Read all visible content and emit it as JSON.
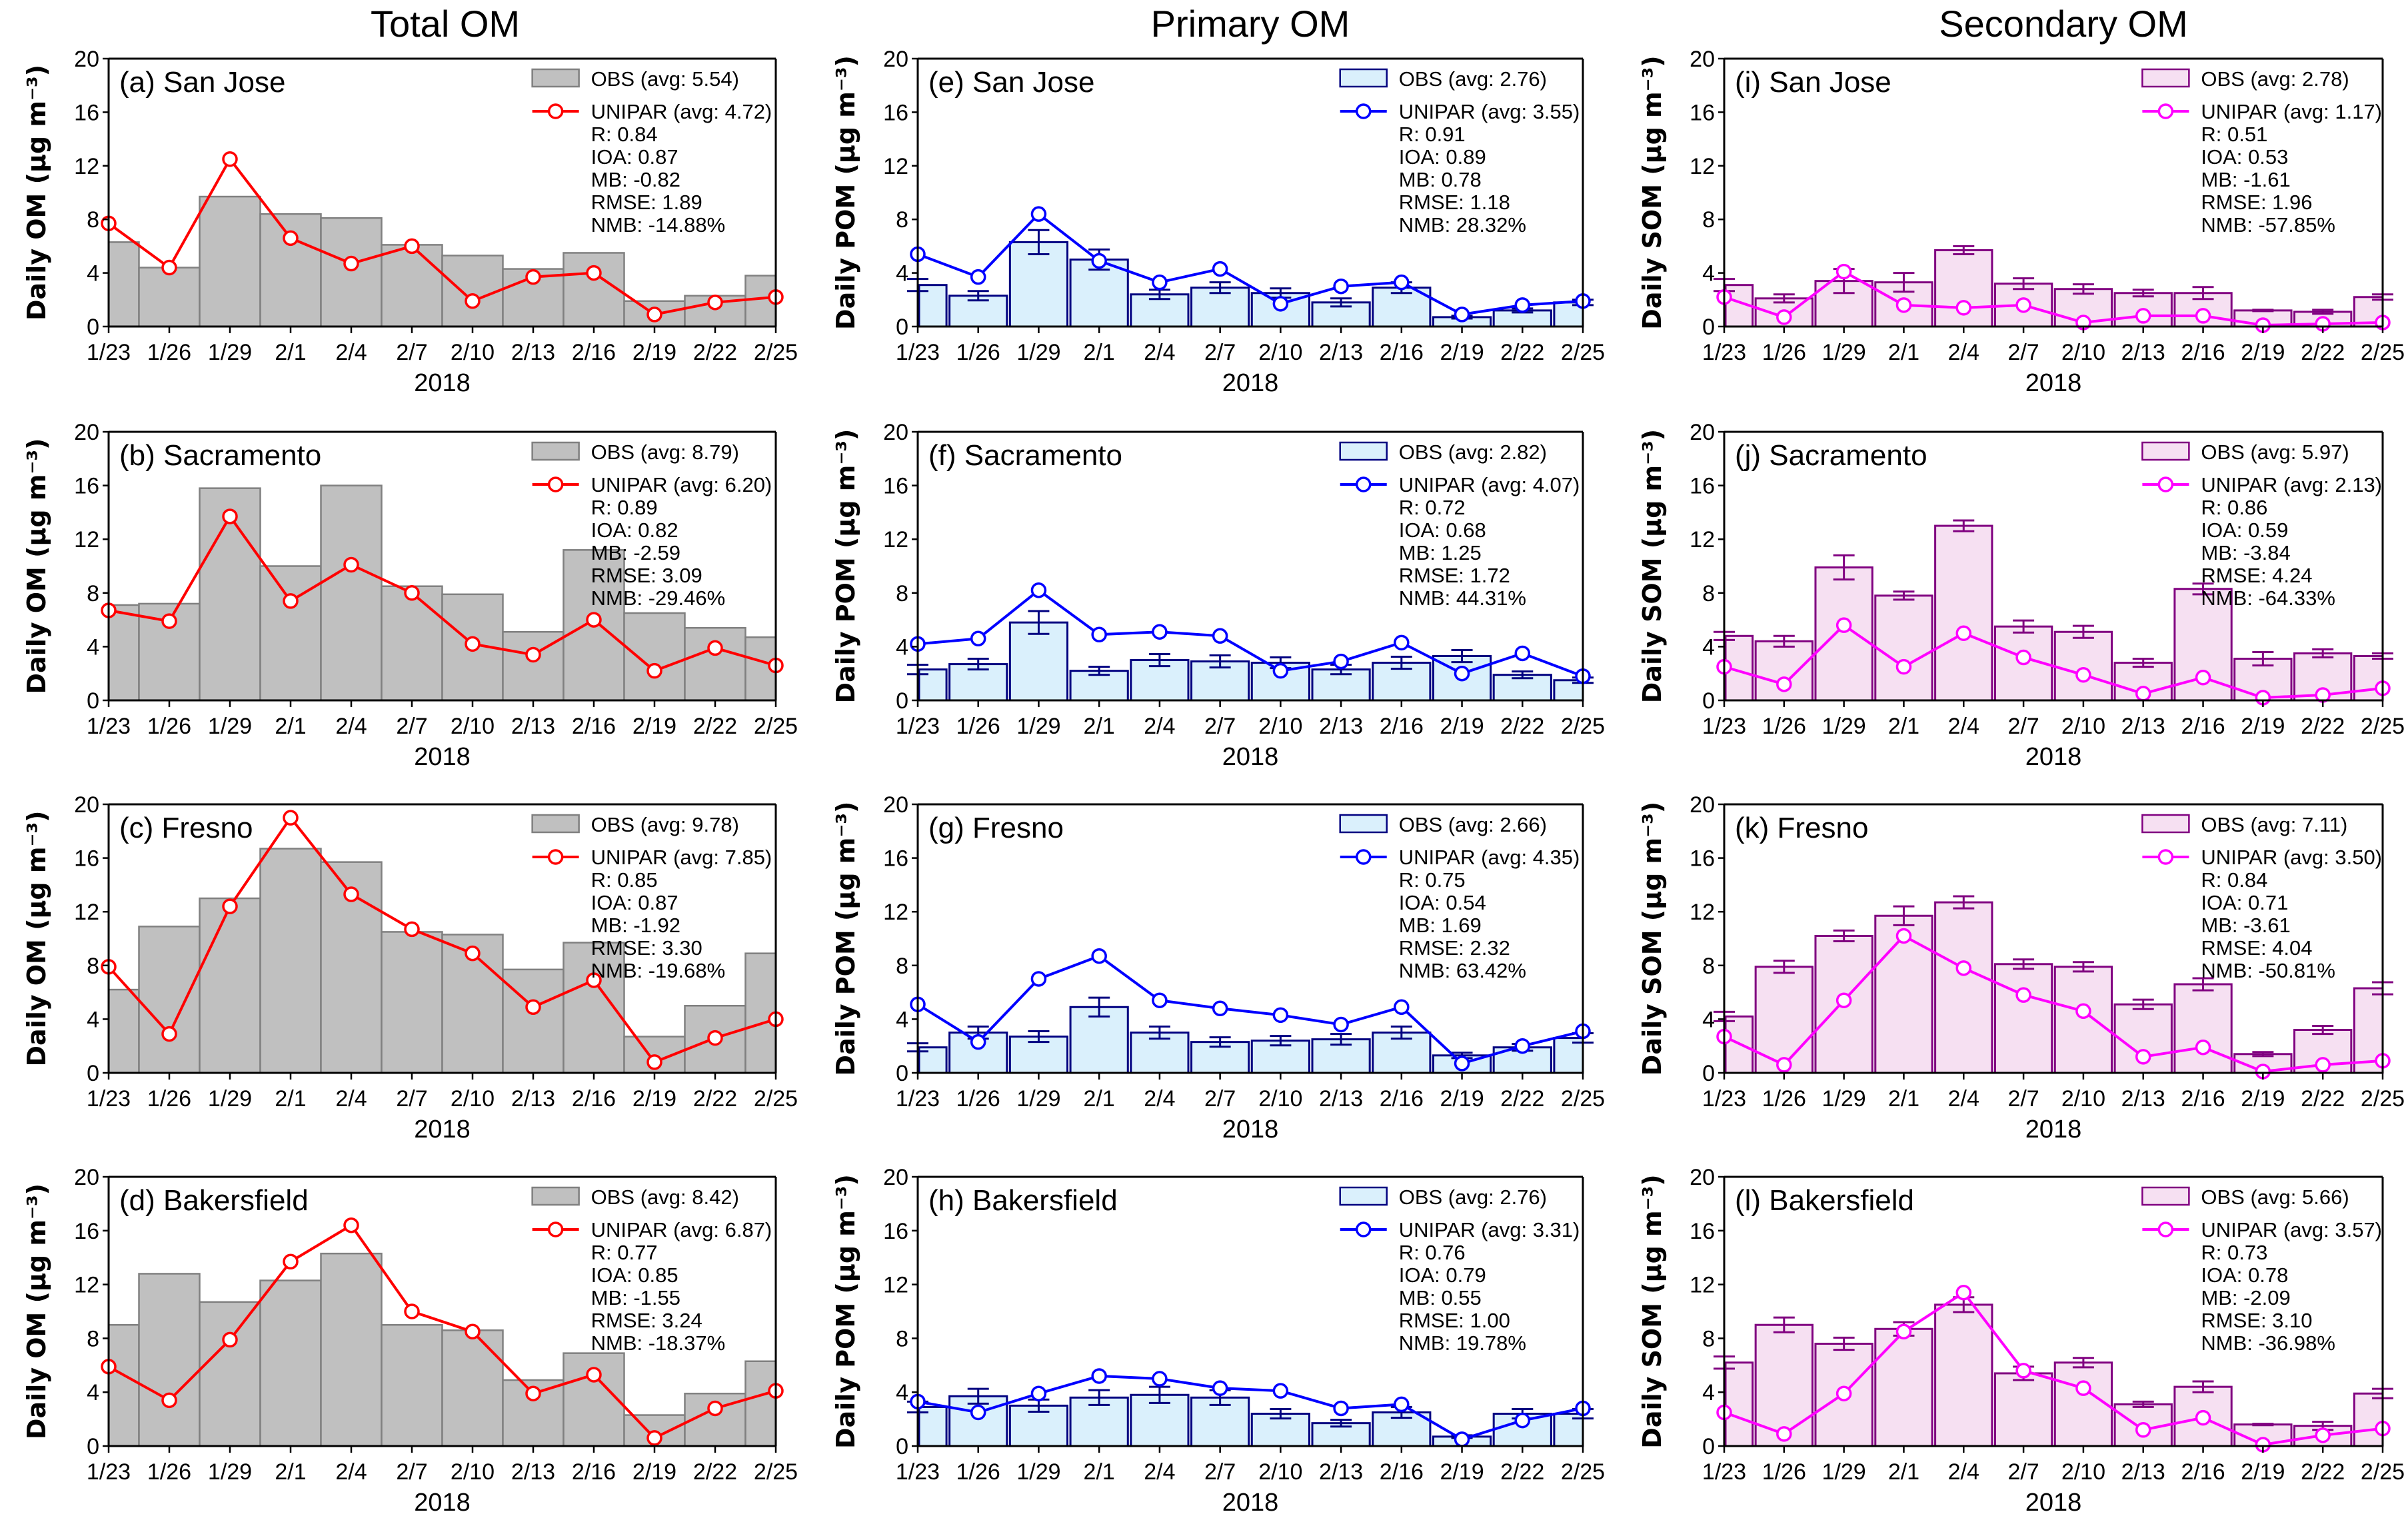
{
  "figure": {
    "column_titles": [
      "Total OM",
      "Primary OM",
      "Secondary OM"
    ],
    "xlabel": "2018"
  },
  "chart_data": [
    {
      "type": "bar+line",
      "panel": "(a)",
      "site": "San Jose",
      "title": "(a) San Jose",
      "column": 0,
      "row": 0,
      "ylabel": "Daily OM (µg m⁻³)",
      "ylim": [
        0,
        20
      ],
      "yticks": [
        0,
        4,
        8,
        12,
        16,
        20
      ],
      "categories": [
        "1/23",
        "1/26",
        "1/29",
        "2/1",
        "2/4",
        "2/7",
        "2/10",
        "2/13",
        "2/16",
        "2/19",
        "2/22",
        "2/25"
      ],
      "obs": {
        "name": "OBS (avg: 5.54)",
        "values": [
          6.3,
          4.4,
          9.7,
          8.4,
          8.1,
          6.1,
          5.3,
          4.3,
          5.5,
          1.9,
          2.3,
          3.8
        ]
      },
      "model": {
        "name": "UNIPAR (avg: 4.72)",
        "values": [
          7.7,
          4.4,
          12.5,
          6.6,
          4.7,
          6.0,
          1.9,
          3.7,
          4.0,
          0.9,
          1.8,
          2.2
        ]
      },
      "stats": [
        "R: 0.84",
        "IOA: 0.87",
        "MB: -0.82",
        "RMSE: 1.89",
        "NMB: -14.88%"
      ],
      "colors": {
        "bar_fill": "#c0c0c0",
        "bar_edge": "#808080",
        "line": "#ff0000"
      }
    },
    {
      "type": "bar+line",
      "panel": "(b)",
      "site": "Sacramento",
      "title": "(b) Sacramento",
      "column": 0,
      "row": 1,
      "ylabel": "Daily OM (µg m⁻³)",
      "ylim": [
        0,
        20
      ],
      "yticks": [
        0,
        4,
        8,
        12,
        16,
        20
      ],
      "categories": [
        "1/23",
        "1/26",
        "1/29",
        "2/1",
        "2/4",
        "2/7",
        "2/10",
        "2/13",
        "2/16",
        "2/19",
        "2/22",
        "2/25"
      ],
      "obs": {
        "name": "OBS (avg: 8.79)",
        "values": [
          7.1,
          7.2,
          15.8,
          10.0,
          16.0,
          8.5,
          7.9,
          5.1,
          11.2,
          6.5,
          5.4,
          4.7
        ]
      },
      "model": {
        "name": "UNIPAR (avg: 6.20)",
        "values": [
          6.7,
          5.9,
          13.7,
          7.4,
          10.1,
          8.0,
          4.2,
          3.4,
          6.0,
          2.2,
          3.9,
          2.6
        ]
      },
      "stats": [
        "R: 0.89",
        "IOA: 0.82",
        "MB: -2.59",
        "RMSE: 3.09",
        "NMB: -29.46%"
      ],
      "colors": {
        "bar_fill": "#c0c0c0",
        "bar_edge": "#808080",
        "line": "#ff0000"
      }
    },
    {
      "type": "bar+line",
      "panel": "(c)",
      "site": "Fresno",
      "title": "(c) Fresno",
      "column": 0,
      "row": 2,
      "ylabel": "Daily OM (µg m⁻³)",
      "ylim": [
        0,
        20
      ],
      "yticks": [
        0,
        4,
        8,
        12,
        16,
        20
      ],
      "categories": [
        "1/23",
        "1/26",
        "1/29",
        "2/1",
        "2/4",
        "2/7",
        "2/10",
        "2/13",
        "2/16",
        "2/19",
        "2/22",
        "2/25"
      ],
      "obs": {
        "name": "OBS (avg: 9.78)",
        "values": [
          6.2,
          10.9,
          13.0,
          16.7,
          15.7,
          10.5,
          10.3,
          7.7,
          9.7,
          2.7,
          5.0,
          8.9
        ]
      },
      "model": {
        "name": "UNIPAR (avg: 7.85)",
        "values": [
          7.9,
          2.9,
          12.4,
          19.0,
          13.3,
          10.7,
          8.9,
          4.9,
          6.9,
          0.8,
          2.6,
          4.0
        ]
      },
      "stats": [
        "R: 0.85",
        "IOA: 0.87",
        "MB: -1.92",
        "RMSE: 3.30",
        "NMB: -19.68%"
      ],
      "colors": {
        "bar_fill": "#c0c0c0",
        "bar_edge": "#808080",
        "line": "#ff0000"
      }
    },
    {
      "type": "bar+line",
      "panel": "(d)",
      "site": "Bakersfield",
      "title": "(d) Bakersfield",
      "column": 0,
      "row": 3,
      "ylabel": "Daily OM (µg m⁻³)",
      "ylim": [
        0,
        20
      ],
      "yticks": [
        0,
        4,
        8,
        12,
        16,
        20
      ],
      "categories": [
        "1/23",
        "1/26",
        "1/29",
        "2/1",
        "2/4",
        "2/7",
        "2/10",
        "2/13",
        "2/16",
        "2/19",
        "2/22",
        "2/25"
      ],
      "obs": {
        "name": "OBS (avg: 8.42)",
        "values": [
          9.0,
          12.8,
          10.7,
          12.3,
          14.3,
          9.0,
          8.6,
          4.9,
          6.9,
          2.3,
          3.9,
          6.3
        ]
      },
      "model": {
        "name": "UNIPAR (avg: 6.87)",
        "values": [
          5.9,
          3.4,
          7.9,
          13.7,
          16.4,
          10.0,
          8.5,
          3.9,
          5.3,
          0.6,
          2.8,
          4.1
        ]
      },
      "stats": [
        "R: 0.77",
        "IOA: 0.85",
        "MB: -1.55",
        "RMSE: 3.24",
        "NMB: -18.37%"
      ],
      "colors": {
        "bar_fill": "#c0c0c0",
        "bar_edge": "#808080",
        "line": "#ff0000"
      }
    },
    {
      "type": "bar+line",
      "panel": "(e)",
      "site": "San Jose",
      "title": "(e) San Jose",
      "column": 1,
      "row": 0,
      "ylabel": "Daily POM (µg m⁻³)",
      "ylim": [
        0,
        20
      ],
      "yticks": [
        0,
        4,
        8,
        12,
        16,
        20
      ],
      "categories": [
        "1/23",
        "1/26",
        "1/29",
        "2/1",
        "2/4",
        "2/7",
        "2/10",
        "2/13",
        "2/16",
        "2/19",
        "2/22",
        "2/25"
      ],
      "obs": {
        "name": "OBS (avg: 2.76)",
        "values": [
          3.1,
          2.3,
          6.3,
          5.0,
          2.4,
          2.9,
          2.5,
          1.8,
          2.9,
          0.7,
          1.2,
          1.8
        ],
        "err": [
          0.45,
          0.35,
          0.9,
          0.75,
          0.35,
          0.4,
          0.35,
          0.3,
          0.4,
          0.1,
          0.15,
          0.2
        ]
      },
      "model": {
        "name": "UNIPAR (avg: 3.55)",
        "values": [
          5.4,
          3.7,
          8.4,
          4.9,
          3.3,
          4.3,
          1.7,
          3.0,
          3.3,
          0.9,
          1.6,
          1.9
        ]
      },
      "stats": [
        "R: 0.91",
        "IOA: 0.89",
        "MB: 0.78",
        "RMSE: 1.18",
        "NMB: 28.32%"
      ],
      "colors": {
        "bar_fill": "#daf0fc",
        "bar_edge": "#000080",
        "line": "#0000ff"
      }
    },
    {
      "type": "bar+line",
      "panel": "(f)",
      "site": "Sacramento",
      "title": "(f) Sacramento",
      "column": 1,
      "row": 1,
      "ylabel": "Daily POM (µg m⁻³)",
      "ylim": [
        0,
        20
      ],
      "yticks": [
        0,
        4,
        8,
        12,
        16,
        20
      ],
      "categories": [
        "1/23",
        "1/26",
        "1/29",
        "2/1",
        "2/4",
        "2/7",
        "2/10",
        "2/13",
        "2/16",
        "2/19",
        "2/22",
        "2/25"
      ],
      "obs": {
        "name": "OBS (avg: 2.82)",
        "values": [
          2.3,
          2.7,
          5.8,
          2.2,
          3.0,
          2.9,
          2.8,
          2.3,
          2.8,
          3.3,
          1.9,
          1.5
        ],
        "err": [
          0.35,
          0.4,
          0.85,
          0.3,
          0.45,
          0.45,
          0.4,
          0.35,
          0.45,
          0.45,
          0.25,
          0.2
        ]
      },
      "model": {
        "name": "UNIPAR (avg: 4.07)",
        "values": [
          4.2,
          4.6,
          8.2,
          4.9,
          5.1,
          4.8,
          2.2,
          2.9,
          4.3,
          2.0,
          3.5,
          1.8
        ]
      },
      "stats": [
        "R: 0.72",
        "IOA: 0.68",
        "MB: 1.25",
        "RMSE: 1.72",
        "NMB: 44.31%"
      ],
      "colors": {
        "bar_fill": "#daf0fc",
        "bar_edge": "#000080",
        "line": "#0000ff"
      }
    },
    {
      "type": "bar+line",
      "panel": "(g)",
      "site": "Fresno",
      "title": "(g) Fresno",
      "column": 1,
      "row": 2,
      "ylabel": "Daily POM (µg m⁻³)",
      "ylim": [
        0,
        20
      ],
      "yticks": [
        0,
        4,
        8,
        12,
        16,
        20
      ],
      "categories": [
        "1/23",
        "1/26",
        "1/29",
        "2/1",
        "2/4",
        "2/7",
        "2/10",
        "2/13",
        "2/16",
        "2/19",
        "2/22",
        "2/25"
      ],
      "obs": {
        "name": "OBS (avg: 2.66)",
        "values": [
          1.9,
          3.0,
          2.7,
          4.9,
          3.0,
          2.3,
          2.4,
          2.5,
          3.0,
          1.3,
          1.9,
          2.6
        ],
        "err": [
          0.3,
          0.45,
          0.4,
          0.7,
          0.45,
          0.35,
          0.35,
          0.4,
          0.45,
          0.2,
          0.25,
          0.35
        ]
      },
      "model": {
        "name": "UNIPAR (avg: 4.35)",
        "values": [
          5.1,
          2.3,
          7.0,
          8.7,
          5.4,
          4.8,
          4.3,
          3.6,
          4.9,
          0.7,
          2.0,
          3.1
        ]
      },
      "stats": [
        "R: 0.75",
        "IOA: 0.54",
        "MB: 1.69",
        "RMSE: 2.32",
        "NMB: 63.42%"
      ],
      "colors": {
        "bar_fill": "#daf0fc",
        "bar_edge": "#000080",
        "line": "#0000ff"
      }
    },
    {
      "type": "bar+line",
      "panel": "(h)",
      "site": "Bakersfield",
      "title": "(h) Bakersfield",
      "column": 1,
      "row": 3,
      "ylabel": "Daily POM (µg m⁻³)",
      "ylim": [
        0,
        20
      ],
      "yticks": [
        0,
        4,
        8,
        12,
        16,
        20
      ],
      "categories": [
        "1/23",
        "1/26",
        "1/29",
        "2/1",
        "2/4",
        "2/7",
        "2/10",
        "2/13",
        "2/16",
        "2/19",
        "2/22",
        "2/25"
      ],
      "obs": {
        "name": "OBS (avg: 2.76)",
        "values": [
          2.9,
          3.7,
          3.0,
          3.6,
          3.8,
          3.6,
          2.4,
          1.7,
          2.5,
          0.7,
          2.4,
          2.4
        ],
        "err": [
          0.4,
          0.55,
          0.45,
          0.55,
          0.6,
          0.55,
          0.35,
          0.25,
          0.4,
          0.1,
          0.35,
          0.35
        ]
      },
      "model": {
        "name": "UNIPAR (avg: 3.31)",
        "values": [
          3.3,
          2.5,
          3.9,
          5.2,
          5.0,
          4.3,
          4.1,
          2.8,
          3.1,
          0.5,
          1.9,
          2.8
        ]
      },
      "stats": [
        "R: 0.76",
        "IOA: 0.79",
        "MB: 0.55",
        "RMSE: 1.00",
        "NMB: 19.78%"
      ],
      "colors": {
        "bar_fill": "#daf0fc",
        "bar_edge": "#000080",
        "line": "#0000ff"
      }
    },
    {
      "type": "bar+line",
      "panel": "(i)",
      "site": "San Jose",
      "title": "(i) San Jose",
      "column": 2,
      "row": 0,
      "ylabel": "Daily SOM (µg m⁻³)",
      "ylim": [
        0,
        20
      ],
      "yticks": [
        0,
        4,
        8,
        12,
        16,
        20
      ],
      "categories": [
        "1/23",
        "1/26",
        "1/29",
        "2/1",
        "2/4",
        "2/7",
        "2/10",
        "2/13",
        "2/16",
        "2/19",
        "2/22",
        "2/25"
      ],
      "obs": {
        "name": "OBS (avg: 2.78)",
        "values": [
          3.1,
          2.1,
          3.4,
          3.3,
          5.7,
          3.2,
          2.8,
          2.5,
          2.5,
          1.2,
          1.1,
          2.2
        ],
        "err": [
          0.45,
          0.3,
          0.9,
          0.7,
          0.3,
          0.4,
          0.35,
          0.25,
          0.45,
          0.05,
          0.15,
          0.2
        ]
      },
      "model": {
        "name": "UNIPAR (avg: 1.17)",
        "values": [
          2.2,
          0.7,
          4.1,
          1.6,
          1.4,
          1.6,
          0.3,
          0.8,
          0.8,
          0.1,
          0.2,
          0.3
        ]
      },
      "stats": [
        "R: 0.51",
        "IOA: 0.53",
        "MB: -1.61",
        "RMSE: 1.96",
        "NMB: -57.85%"
      ],
      "colors": {
        "bar_fill": "#f6e0f2",
        "bar_edge": "#800080",
        "line": "#ff00ff"
      }
    },
    {
      "type": "bar+line",
      "panel": "(j)",
      "site": "Sacramento",
      "title": "(j) Sacramento",
      "column": 2,
      "row": 1,
      "ylabel": "Daily SOM (µg m⁻³)",
      "ylim": [
        0,
        20
      ],
      "yticks": [
        0,
        4,
        8,
        12,
        16,
        20
      ],
      "categories": [
        "1/23",
        "1/26",
        "1/29",
        "2/1",
        "2/4",
        "2/7",
        "2/10",
        "2/13",
        "2/16",
        "2/19",
        "2/22",
        "2/25"
      ],
      "obs": {
        "name": "OBS (avg: 5.97)",
        "values": [
          4.8,
          4.4,
          9.9,
          7.8,
          13.0,
          5.5,
          5.1,
          2.8,
          8.3,
          3.1,
          3.5,
          3.3
        ],
        "err": [
          0.3,
          0.4,
          0.9,
          0.3,
          0.4,
          0.45,
          0.45,
          0.3,
          0.4,
          0.5,
          0.3,
          0.2
        ]
      },
      "model": {
        "name": "UNIPAR (avg: 2.13)",
        "values": [
          2.5,
          1.2,
          5.6,
          2.5,
          5.0,
          3.2,
          1.9,
          0.5,
          1.7,
          0.2,
          0.4,
          0.9
        ]
      },
      "stats": [
        "R: 0.86",
        "IOA: 0.59",
        "MB: -3.84",
        "RMSE: 4.24",
        "NMB: -64.33%"
      ],
      "colors": {
        "bar_fill": "#f6e0f2",
        "bar_edge": "#800080",
        "line": "#ff00ff"
      }
    },
    {
      "type": "bar+line",
      "panel": "(k)",
      "site": "Fresno",
      "title": "(k) Fresno",
      "column": 2,
      "row": 2,
      "ylabel": "Daily SOM (µg m⁻³)",
      "ylim": [
        0,
        20
      ],
      "yticks": [
        0,
        4,
        8,
        12,
        16,
        20
      ],
      "categories": [
        "1/23",
        "1/26",
        "1/29",
        "2/1",
        "2/4",
        "2/7",
        "2/10",
        "2/13",
        "2/16",
        "2/19",
        "2/22",
        "2/25"
      ],
      "obs": {
        "name": "OBS (avg: 7.11)",
        "values": [
          4.2,
          7.9,
          10.2,
          11.7,
          12.7,
          8.1,
          7.9,
          5.1,
          6.6,
          1.4,
          3.2,
          6.3
        ],
        "err": [
          0.35,
          0.45,
          0.4,
          0.7,
          0.45,
          0.35,
          0.35,
          0.35,
          0.45,
          0.15,
          0.3,
          0.45
        ]
      },
      "model": {
        "name": "UNIPAR (avg: 3.50)",
        "values": [
          2.7,
          0.6,
          5.4,
          10.2,
          7.8,
          5.8,
          4.6,
          1.2,
          1.9,
          0.1,
          0.6,
          0.9
        ]
      },
      "stats": [
        "R: 0.84",
        "IOA: 0.71",
        "MB: -3.61",
        "RMSE: 4.04",
        "NMB: -50.81%"
      ],
      "colors": {
        "bar_fill": "#f6e0f2",
        "bar_edge": "#800080",
        "line": "#ff00ff"
      }
    },
    {
      "type": "bar+line",
      "panel": "(l)",
      "site": "Bakersfield",
      "title": "(l) Bakersfield",
      "column": 2,
      "row": 3,
      "ylabel": "Daily SOM (µg m⁻³)",
      "ylim": [
        0,
        20
      ],
      "yticks": [
        0,
        4,
        8,
        12,
        16,
        20
      ],
      "categories": [
        "1/23",
        "1/26",
        "1/29",
        "2/1",
        "2/4",
        "2/7",
        "2/10",
        "2/13",
        "2/16",
        "2/19",
        "2/22",
        "2/25"
      ],
      "obs": {
        "name": "OBS (avg: 5.66)",
        "values": [
          6.2,
          9.0,
          7.6,
          8.7,
          10.5,
          5.4,
          6.2,
          3.1,
          4.4,
          1.6,
          1.5,
          3.9
        ],
        "err": [
          0.45,
          0.55,
          0.45,
          0.5,
          0.55,
          0.5,
          0.35,
          0.2,
          0.4,
          0.05,
          0.3,
          0.35
        ]
      },
      "model": {
        "name": "UNIPAR (avg: 3.57)",
        "values": [
          2.5,
          0.9,
          3.9,
          8.5,
          11.4,
          5.6,
          4.3,
          1.2,
          2.1,
          0.1,
          0.8,
          1.3
        ]
      },
      "stats": [
        "R: 0.73",
        "IOA: 0.78",
        "MB: -2.09",
        "RMSE: 3.10",
        "NMB: -36.98%"
      ],
      "colors": {
        "bar_fill": "#f6e0f2",
        "bar_edge": "#800080",
        "line": "#ff00ff"
      }
    }
  ]
}
